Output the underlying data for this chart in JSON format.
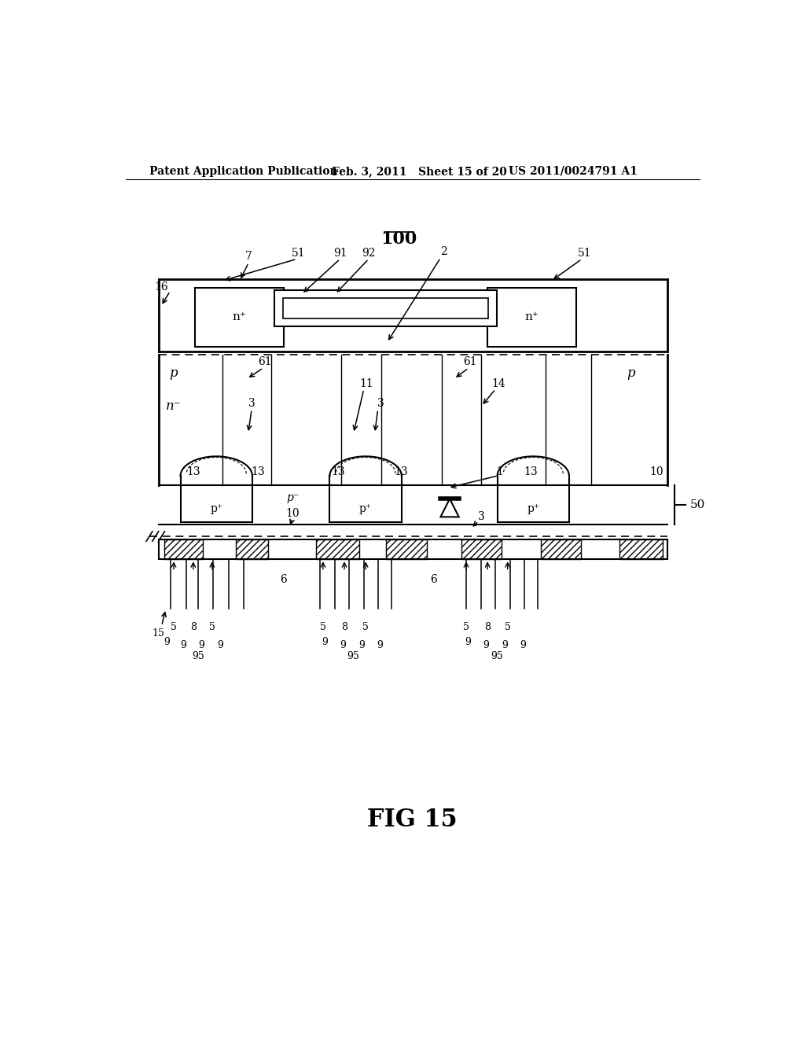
{
  "bg_color": "#ffffff",
  "header_left": "Patent Application Publication",
  "header_mid": "Feb. 3, 2011   Sheet 15 of 20",
  "header_right": "US 2011/0024791 A1",
  "title": "100",
  "fig_label": "FIG 15"
}
